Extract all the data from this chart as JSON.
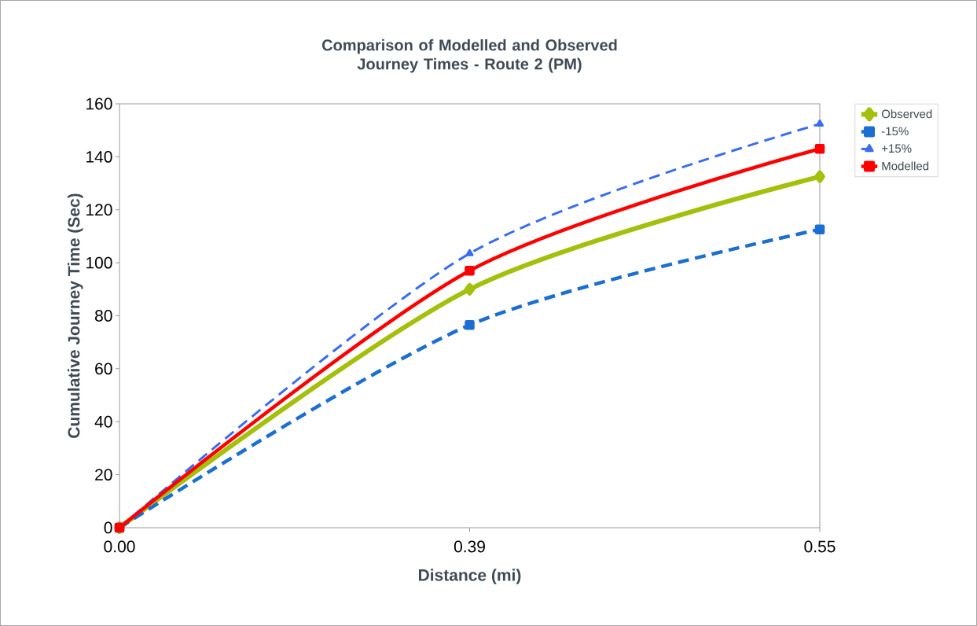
{
  "chart_data": {
    "type": "line",
    "title": "Comparison of Modelled and Observed Journey Times - Route 2 (PM)",
    "xlabel": "Distance (mi)",
    "ylabel": "Cumulative Journey Time (Sec)",
    "categories": [
      "0.00",
      "0.39",
      "0.55"
    ],
    "series": [
      {
        "name": "Observed",
        "color": "#a4bf0c",
        "values": [
          0,
          90,
          132.5
        ],
        "marker": "diamond",
        "line_style": "solid"
      },
      {
        "name": "-15%",
        "color": "#1c6fd0",
        "values": [
          0,
          76.5,
          112.6
        ],
        "marker": "square",
        "line_style": "dashed"
      },
      {
        "name": "+15%",
        "color": "#3a6cf0",
        "values": [
          0,
          103.5,
          152.4
        ],
        "marker": "triangle",
        "line_style": "dashed"
      },
      {
        "name": "Modelled",
        "color": "#ff0000",
        "values": [
          0,
          97,
          143
        ],
        "marker": "square",
        "line_style": "solid"
      }
    ],
    "ylim": [
      0,
      160
    ],
    "yticks": [
      0,
      20,
      40,
      60,
      80,
      100,
      120,
      140,
      160
    ],
    "grid": false,
    "legend": "right"
  }
}
